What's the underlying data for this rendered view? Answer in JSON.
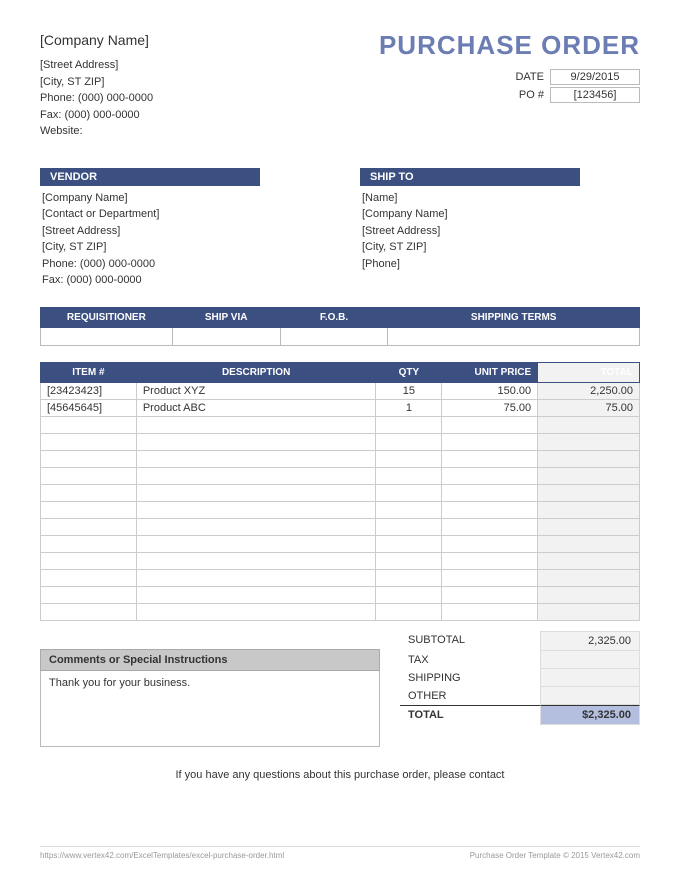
{
  "company": {
    "name": "[Company Name]",
    "street": "[Street Address]",
    "citystzip": "[City, ST  ZIP]",
    "phone": "Phone: (000) 000-0000",
    "fax": "Fax: (000) 000-0000",
    "website": "Website:"
  },
  "title": "PURCHASE ORDER",
  "meta": {
    "date_label": "DATE",
    "date": "9/29/2015",
    "po_label": "PO #",
    "po": "[123456]"
  },
  "vendor": {
    "heading": "VENDOR",
    "company": "[Company Name]",
    "contact": "[Contact or Department]",
    "street": "[Street Address]",
    "citystzip": "[City, ST  ZIP]",
    "phone": "Phone: (000) 000-0000",
    "fax": "Fax: (000) 000-0000"
  },
  "shipto": {
    "heading": "SHIP TO",
    "name": "[Name]",
    "company": "[Company Name]",
    "street": "[Street Address]",
    "citystzip": "[City, ST  ZIP]",
    "phone": "[Phone]"
  },
  "shipcols": {
    "requisitioner": "REQUISITIONER",
    "shipvia": "SHIP VIA",
    "fob": "F.O.B.",
    "terms": "SHIPPING TERMS"
  },
  "itemcols": {
    "item": "ITEM #",
    "desc": "DESCRIPTION",
    "qty": "QTY",
    "price": "UNIT PRICE",
    "total": "TOTAL"
  },
  "items": [
    {
      "item": "[23423423]",
      "desc": "Product XYZ",
      "qty": "15",
      "price": "150.00",
      "total": "2,250.00"
    },
    {
      "item": "[45645645]",
      "desc": "Product ABC",
      "qty": "1",
      "price": "75.00",
      "total": "75.00"
    },
    {
      "item": "",
      "desc": "",
      "qty": "",
      "price": "",
      "total": ""
    },
    {
      "item": "",
      "desc": "",
      "qty": "",
      "price": "",
      "total": ""
    },
    {
      "item": "",
      "desc": "",
      "qty": "",
      "price": "",
      "total": ""
    },
    {
      "item": "",
      "desc": "",
      "qty": "",
      "price": "",
      "total": ""
    },
    {
      "item": "",
      "desc": "",
      "qty": "",
      "price": "",
      "total": ""
    },
    {
      "item": "",
      "desc": "",
      "qty": "",
      "price": "",
      "total": ""
    },
    {
      "item": "",
      "desc": "",
      "qty": "",
      "price": "",
      "total": ""
    },
    {
      "item": "",
      "desc": "",
      "qty": "",
      "price": "",
      "total": ""
    },
    {
      "item": "",
      "desc": "",
      "qty": "",
      "price": "",
      "total": ""
    },
    {
      "item": "",
      "desc": "",
      "qty": "",
      "price": "",
      "total": ""
    },
    {
      "item": "",
      "desc": "",
      "qty": "",
      "price": "",
      "total": ""
    },
    {
      "item": "",
      "desc": "",
      "qty": "",
      "price": "",
      "total": ""
    }
  ],
  "totals": {
    "subtotal_label": "SUBTOTAL",
    "subtotal": "2,325.00",
    "tax_label": "TAX",
    "tax": "",
    "shipping_label": "SHIPPING",
    "shipping": "",
    "other_label": "OTHER",
    "other": "",
    "total_label": "TOTAL",
    "total": "$2,325.00"
  },
  "comments": {
    "heading": "Comments or Special Instructions",
    "body": "Thank you for your business."
  },
  "contact": "If you have any questions about this purchase order, please contact",
  "footer": {
    "left": "https://www.vertex42.com/ExcelTemplates/excel-purchase-order.html",
    "right": "Purchase Order Template © 2015 Vertex42.com"
  },
  "colors": {
    "header_bg": "#3b4f81",
    "title_color": "#6b7db3",
    "shade": "#f2f2f2",
    "grand_bg": "#b4bfe0",
    "comments_head": "#c8c8c8"
  }
}
